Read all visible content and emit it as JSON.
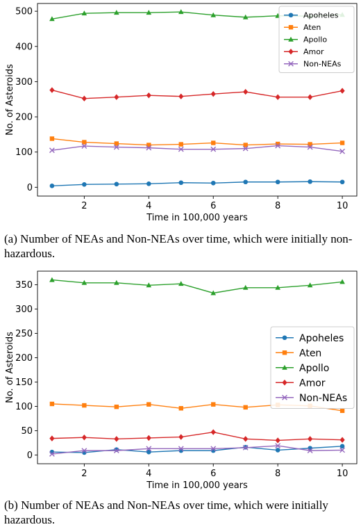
{
  "chart_data": [
    {
      "type": "line",
      "title": "",
      "xlabel": "Time in 100,000 years",
      "ylabel": "No. of Asteroids",
      "x": [
        1,
        2,
        3,
        4,
        5,
        6,
        7,
        8,
        9,
        10
      ],
      "xticks": [
        2,
        4,
        6,
        8,
        10
      ],
      "yticks": [
        0,
        100,
        200,
        300,
        400,
        500
      ],
      "xlim": [
        0.55,
        10.45
      ],
      "ylim": [
        -25,
        522
      ],
      "grid": false,
      "legend_position": "top-right",
      "series": [
        {
          "name": "Apoheles",
          "color": "#1f77b4",
          "marker": "circle",
          "values": [
            4,
            8,
            9,
            10,
            13,
            12,
            15,
            15,
            16,
            15
          ]
        },
        {
          "name": "Aten",
          "color": "#ff7f0e",
          "marker": "square",
          "values": [
            138,
            128,
            124,
            120,
            122,
            126,
            120,
            123,
            122,
            126
          ]
        },
        {
          "name": "Apollo",
          "color": "#2ca02c",
          "marker": "triangle",
          "values": [
            478,
            494,
            496,
            496,
            498,
            489,
            483,
            487,
            486,
            490
          ]
        },
        {
          "name": "Amor",
          "color": "#d62728",
          "marker": "diamond",
          "values": [
            276,
            252,
            256,
            261,
            258,
            265,
            271,
            256,
            256,
            274
          ]
        },
        {
          "name": "Non-NEAs",
          "color": "#9467bd",
          "marker": "x",
          "values": [
            105,
            117,
            114,
            112,
            108,
            108,
            110,
            118,
            114,
            102
          ]
        }
      ]
    },
    {
      "type": "line",
      "title": "",
      "xlabel": "Time in 100,000 years",
      "ylabel": "No. of Asteroids",
      "x": [
        1,
        2,
        3,
        4,
        5,
        6,
        7,
        8,
        9,
        10
      ],
      "xticks": [
        2,
        4,
        6,
        8,
        10
      ],
      "yticks": [
        0,
        50,
        100,
        150,
        200,
        250,
        300,
        350
      ],
      "xlim": [
        0.55,
        10.45
      ],
      "ylim": [
        -18,
        378
      ],
      "grid": false,
      "legend_position": "center-right",
      "series": [
        {
          "name": "Apoheles",
          "color": "#1f77b4",
          "marker": "circle",
          "values": [
            6,
            5,
            11,
            6,
            9,
            9,
            16,
            10,
            14,
            18
          ]
        },
        {
          "name": "Aten",
          "color": "#ff7f0e",
          "marker": "square",
          "values": [
            105,
            102,
            99,
            104,
            96,
            104,
            98,
            103,
            101,
            91
          ]
        },
        {
          "name": "Apollo",
          "color": "#2ca02c",
          "marker": "triangle",
          "values": [
            360,
            354,
            354,
            349,
            352,
            333,
            344,
            344,
            349,
            356
          ]
        },
        {
          "name": "Amor",
          "color": "#d62728",
          "marker": "diamond",
          "values": [
            34,
            36,
            33,
            35,
            37,
            47,
            33,
            30,
            33,
            31
          ]
        },
        {
          "name": "Non-NEAs",
          "color": "#9467bd",
          "marker": "x",
          "values": [
            2,
            9,
            9,
            13,
            13,
            13,
            15,
            19,
            9,
            10
          ]
        }
      ]
    }
  ],
  "captions": {
    "a": "(a) Number of NEAs and Non-NEAs over time, which were initially non-hazardous.",
    "b": "(b) Number of NEAs and Non-NEAs over time, which were initially hazardous."
  }
}
